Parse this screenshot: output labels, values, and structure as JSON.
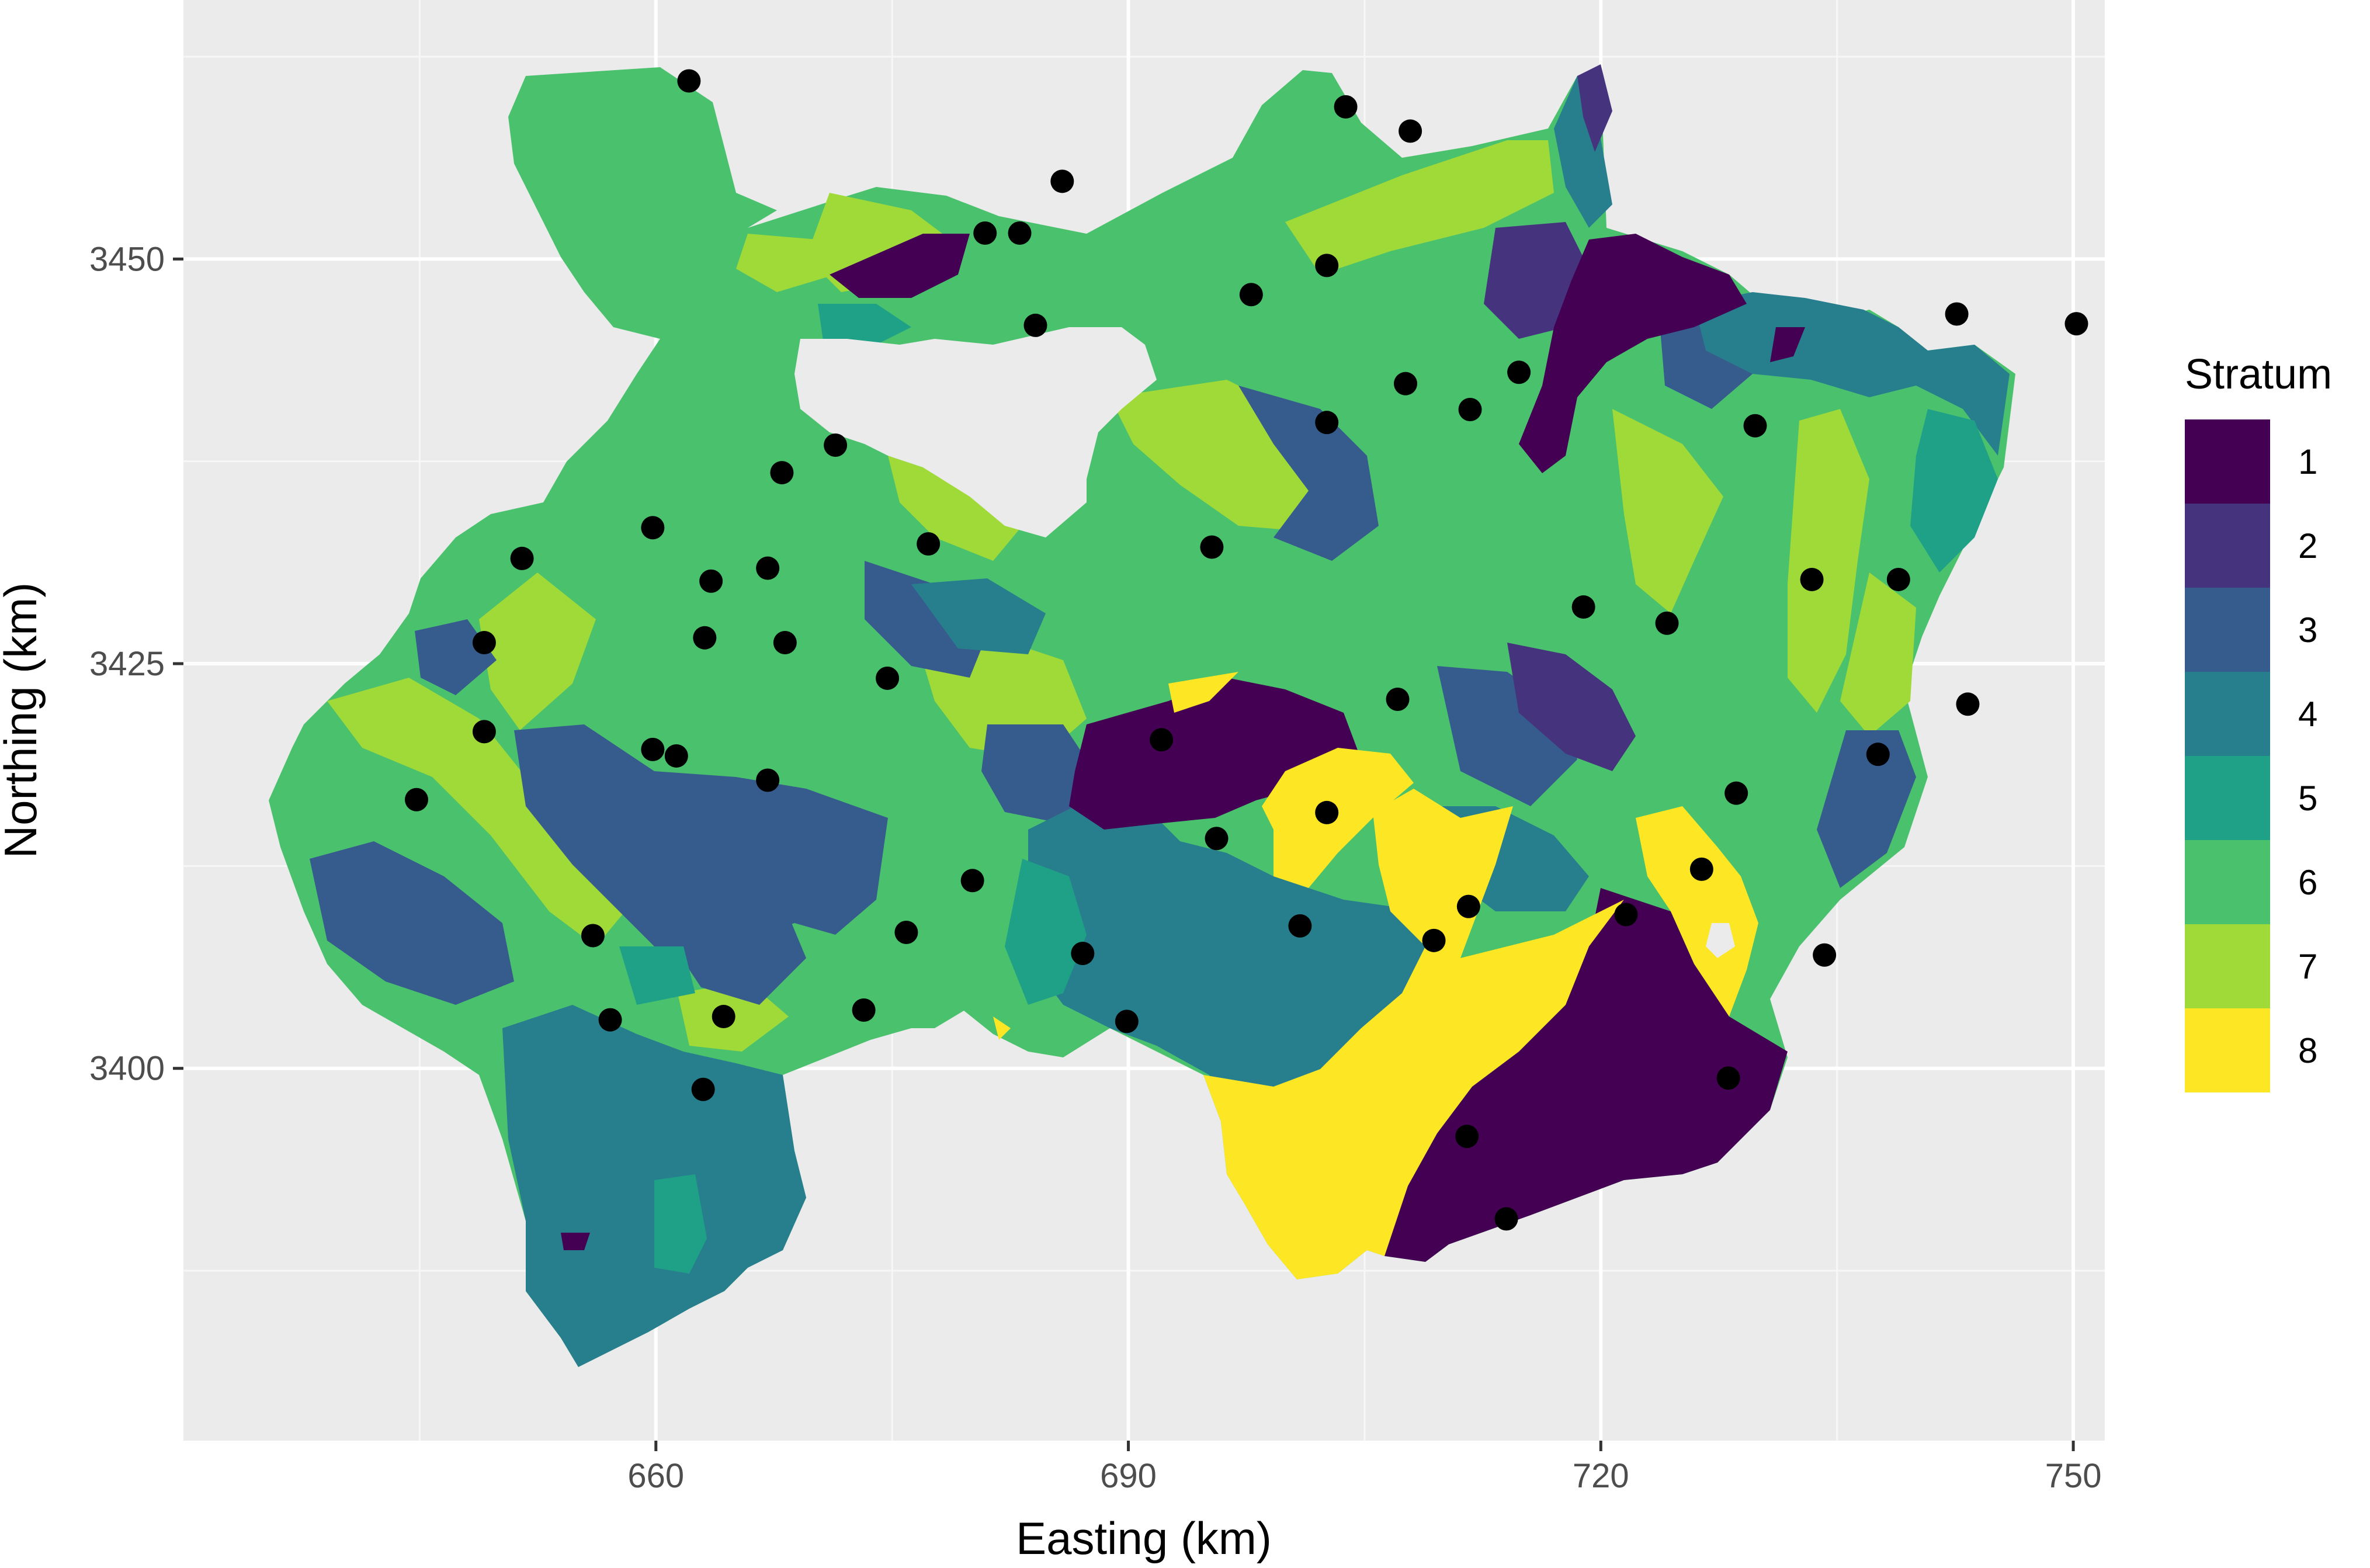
{
  "chart_data": {
    "type": "map",
    "xlabel": "Easting (km)",
    "ylabel": "Northing (km)",
    "xlim": [
      630,
      752
    ],
    "ylim": [
      3377,
      3466
    ],
    "x_ticks": [
      660,
      690,
      720,
      750
    ],
    "y_ticks": [
      3400,
      3425,
      3450
    ],
    "grid": true,
    "legend": {
      "title": "Stratum",
      "position": "right",
      "items": [
        {
          "label": "1",
          "color": "#440154"
        },
        {
          "label": "2",
          "color": "#46337e"
        },
        {
          "label": "3",
          "color": "#365c8d"
        },
        {
          "label": "4",
          "color": "#277f8e"
        },
        {
          "label": "5",
          "color": "#1fa187"
        },
        {
          "label": "6",
          "color": "#4ac16d"
        },
        {
          "label": "7",
          "color": "#a0da39"
        },
        {
          "label": "8",
          "color": "#fde725"
        }
      ]
    },
    "sample_points": [
      [
        662.1,
        3461.0
      ],
      [
        703.8,
        3459.4
      ],
      [
        707.9,
        3457.9
      ],
      [
        685.8,
        3454.8
      ],
      [
        680.9,
        3451.6
      ],
      [
        683.1,
        3451.6
      ],
      [
        684.1,
        3445.9
      ],
      [
        697.8,
        3447.8
      ],
      [
        702.6,
        3449.6
      ],
      [
        742.6,
        3446.6
      ],
      [
        750.2,
        3446.0
      ],
      [
        707.6,
        3442.3
      ],
      [
        714.8,
        3443.0
      ],
      [
        711.7,
        3440.7
      ],
      [
        702.6,
        3439.9
      ],
      [
        729.8,
        3439.7
      ],
      [
        671.4,
        3438.5
      ],
      [
        668.0,
        3436.8
      ],
      [
        659.8,
        3433.4
      ],
      [
        677.3,
        3432.4
      ],
      [
        695.3,
        3432.2
      ],
      [
        651.5,
        3431.5
      ],
      [
        667.1,
        3430.9
      ],
      [
        663.5,
        3430.1
      ],
      [
        733.4,
        3430.2
      ],
      [
        738.9,
        3430.2
      ],
      [
        718.9,
        3428.5
      ],
      [
        724.2,
        3427.5
      ],
      [
        649.1,
        3426.3
      ],
      [
        663.1,
        3426.6
      ],
      [
        668.2,
        3426.3
      ],
      [
        674.7,
        3424.1
      ],
      [
        707.1,
        3422.8
      ],
      [
        743.3,
        3422.5
      ],
      [
        649.1,
        3420.8
      ],
      [
        659.8,
        3419.7
      ],
      [
        661.3,
        3419.3
      ],
      [
        692.1,
        3420.3
      ],
      [
        737.6,
        3419.4
      ],
      [
        667.1,
        3417.8
      ],
      [
        644.8,
        3416.6
      ],
      [
        728.6,
        3417.0
      ],
      [
        702.6,
        3415.8
      ],
      [
        695.6,
        3414.2
      ],
      [
        680.1,
        3411.6
      ],
      [
        726.4,
        3412.3
      ],
      [
        711.6,
        3410.0
      ],
      [
        721.6,
        3409.5
      ],
      [
        700.9,
        3408.8
      ],
      [
        675.9,
        3408.4
      ],
      [
        656.0,
        3408.2
      ],
      [
        709.4,
        3407.9
      ],
      [
        687.1,
        3407.1
      ],
      [
        734.2,
        3407.0
      ],
      [
        673.2,
        3403.6
      ],
      [
        689.9,
        3402.9
      ],
      [
        657.1,
        3403.0
      ],
      [
        664.3,
        3403.2
      ],
      [
        663.0,
        3398.7
      ],
      [
        728.1,
        3399.4
      ],
      [
        711.5,
        3395.8
      ],
      [
        714.0,
        3390.7
      ]
    ]
  }
}
